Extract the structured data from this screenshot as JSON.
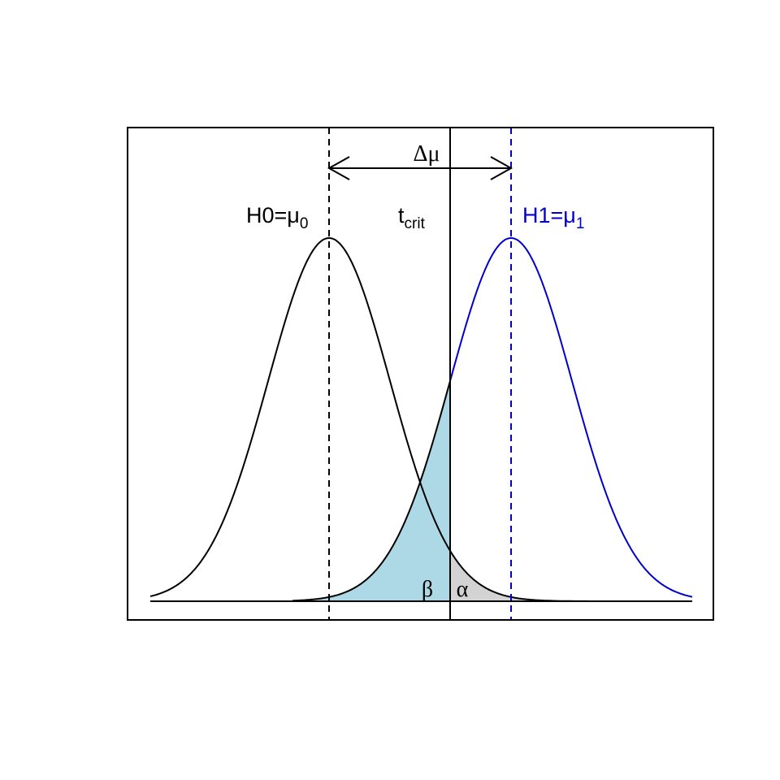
{
  "labels": {
    "delta": "Δμ",
    "h0": {
      "text": "H0=μ",
      "sub": "0"
    },
    "tcrit": {
      "text": "t",
      "sub": "crit"
    },
    "h1": {
      "text": "H1=μ",
      "sub": "1"
    },
    "beta": "β",
    "alpha": "α"
  }
}
